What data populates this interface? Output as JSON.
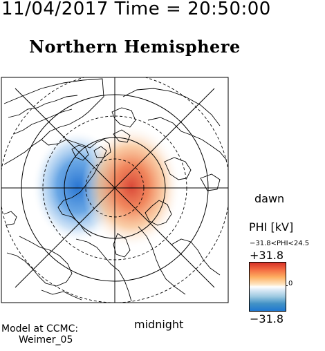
{
  "header": {
    "timestamp": "11/04/2017 Time = 20:50:00",
    "title": "Northern Hemisphere"
  },
  "map": {
    "orientation": {
      "right": "dawn",
      "bottom": "midnight"
    },
    "potential_cells": [
      {
        "name": "negative-cell",
        "color": "#2b7fd8"
      },
      {
        "name": "positive-cell",
        "color": "#e8553a"
      }
    ]
  },
  "legend": {
    "label": "PHI [kV]",
    "range": "−31.8<PHI<24.5",
    "max": "+31.8",
    "min": "−31.8",
    "zero": "0",
    "colors": [
      "#d73027",
      "#fdae61",
      "#ffffff",
      "#9ecae1",
      "#1f78d1"
    ]
  },
  "credits": {
    "line1": "Model at CCMC:",
    "line2": "Weimer_05"
  }
}
